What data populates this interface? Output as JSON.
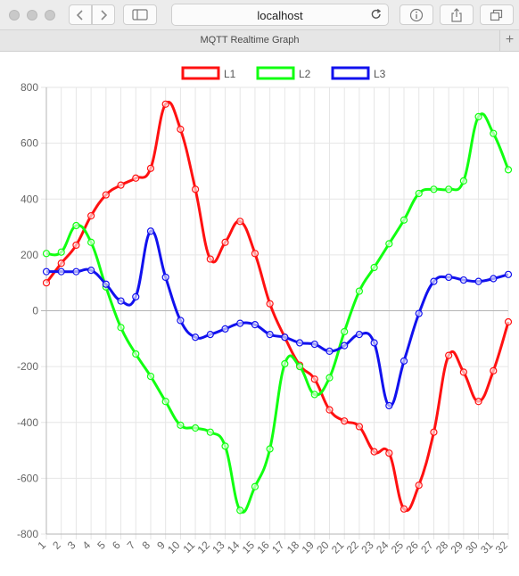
{
  "browser": {
    "address": "localhost",
    "tab_title": "MQTT Realtime Graph",
    "new_tab_glyph": "+",
    "icons": [
      "back-arrow-icon",
      "forward-arrow-icon",
      "sidebar-icon",
      "reload-icon",
      "info-icon",
      "share-icon",
      "tabs-overview-icon"
    ]
  },
  "chart_data": {
    "type": "line",
    "x": [
      1,
      2,
      3,
      4,
      5,
      6,
      7,
      8,
      9,
      10,
      11,
      12,
      13,
      14,
      15,
      16,
      17,
      18,
      19,
      20,
      21,
      22,
      23,
      24,
      25,
      26,
      27,
      28,
      29,
      30,
      31,
      32
    ],
    "ylim": [
      -800,
      800
    ],
    "yticks": [
      -800,
      -600,
      -400,
      -200,
      0,
      200,
      400,
      600,
      800
    ],
    "grid": true,
    "legend": "top-center",
    "series": [
      {
        "name": "L1",
        "color": "#ff1111",
        "values": [
          100,
          170,
          235,
          340,
          415,
          450,
          475,
          510,
          740,
          650,
          435,
          185,
          245,
          320,
          205,
          25,
          -95,
          -195,
          -245,
          -355,
          -395,
          -415,
          -505,
          -510,
          -710,
          -625,
          -435,
          -160,
          -220,
          -325,
          -215,
          -40
        ]
      },
      {
        "name": "L2",
        "color": "#11ff11",
        "values": [
          205,
          210,
          305,
          245,
          85,
          -60,
          -155,
          -235,
          -325,
          -410,
          -420,
          -435,
          -485,
          -715,
          -630,
          -495,
          -190,
          -200,
          -300,
          -240,
          -75,
          70,
          155,
          240,
          325,
          420,
          435,
          435,
          465,
          695,
          635,
          505
        ]
      },
      {
        "name": "L3",
        "color": "#1111ee",
        "values": [
          140,
          140,
          140,
          145,
          95,
          35,
          50,
          285,
          120,
          -35,
          -95,
          -85,
          -65,
          -45,
          -50,
          -85,
          -95,
          -115,
          -120,
          -145,
          -125,
          -85,
          -115,
          -340,
          -180,
          -10,
          105,
          120,
          110,
          105,
          115,
          130
        ]
      }
    ]
  }
}
